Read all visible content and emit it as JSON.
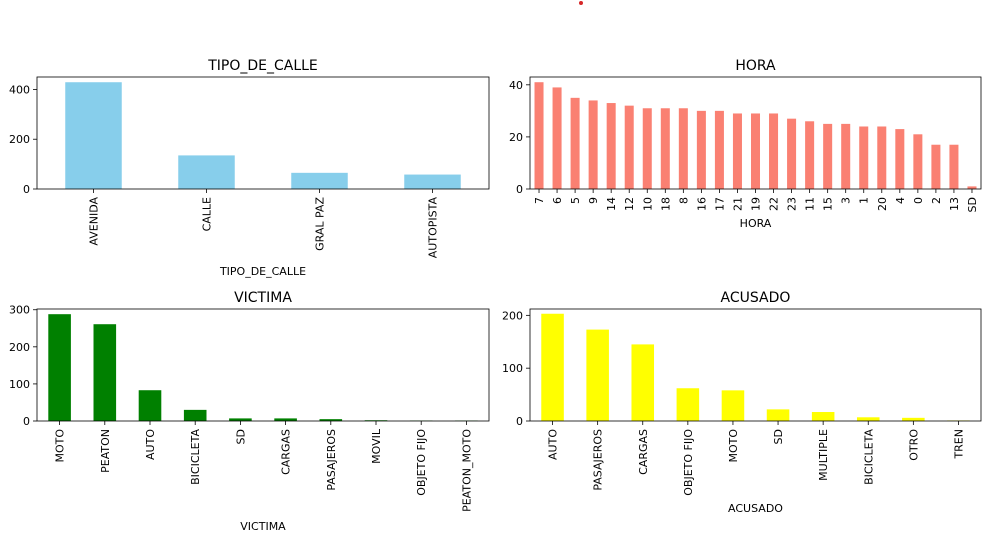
{
  "marker_color": "#d62728",
  "chart_data": [
    {
      "type": "bar",
      "title": "TIPO_DE_CALLE",
      "xlabel": "TIPO_DE_CALLE",
      "ylabel": "",
      "color": "#87ceeb",
      "ylim": [
        0,
        450
      ],
      "yticks": [
        0,
        200,
        400
      ],
      "categories": [
        "AVENIDA",
        "CALLE",
        "GRAL PAZ",
        "AUTOPISTA"
      ],
      "values": [
        429,
        135,
        65,
        58
      ]
    },
    {
      "type": "bar",
      "title": "HORA",
      "xlabel": "HORA",
      "ylabel": "",
      "color": "#fa8072",
      "ylim": [
        0,
        43
      ],
      "yticks": [
        0,
        20,
        40
      ],
      "categories": [
        "7",
        "6",
        "5",
        "9",
        "14",
        "12",
        "10",
        "18",
        "8",
        "16",
        "17",
        "21",
        "19",
        "22",
        "23",
        "11",
        "15",
        "3",
        "1",
        "20",
        "4",
        "0",
        "2",
        "13",
        "SD"
      ],
      "values": [
        41,
        39,
        35,
        34,
        33,
        32,
        31,
        31,
        31,
        30,
        30,
        29,
        29,
        29,
        27,
        26,
        25,
        25,
        24,
        24,
        23,
        21,
        17,
        17,
        1
      ]
    },
    {
      "type": "bar",
      "title": "VICTIMA",
      "xlabel": "VICTIMA",
      "ylabel": "",
      "color": "#008000",
      "ylim": [
        0,
        302
      ],
      "yticks": [
        0,
        100,
        200,
        300
      ],
      "categories": [
        "MOTO",
        "PEATON",
        "AUTO",
        "BICICLETA",
        "SD",
        "CARGAS",
        "PASAJEROS",
        "MOVIL",
        "OBJETO FIJO",
        "PEATON_MOTO"
      ],
      "values": [
        288,
        261,
        83,
        30,
        7,
        7,
        5,
        2,
        1,
        1
      ]
    },
    {
      "type": "bar",
      "title": "ACUSADO",
      "xlabel": "ACUSADO",
      "ylabel": "",
      "color": "#ffff00",
      "ylim": [
        0,
        212
      ],
      "yticks": [
        0,
        100,
        200
      ],
      "categories": [
        "AUTO",
        "PASAJEROS",
        "CARGAS",
        "OBJETO FIJO",
        "MOTO",
        "SD",
        "MULTIPLE",
        "BICICLETA",
        "OTRO",
        "TREN"
      ],
      "values": [
        203,
        173,
        145,
        62,
        58,
        22,
        17,
        7,
        6,
        1
      ]
    }
  ]
}
